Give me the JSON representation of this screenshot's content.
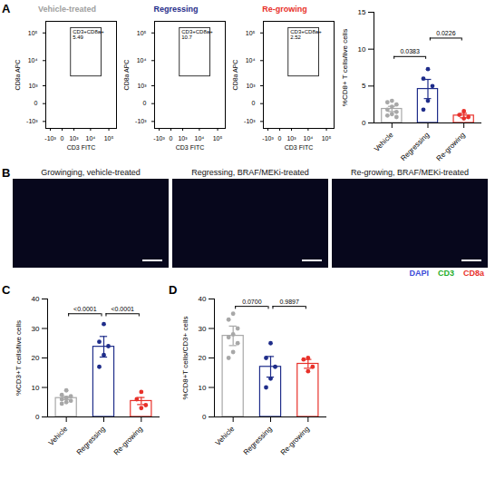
{
  "chart_data": [
    {
      "type": "flow",
      "panel": "A",
      "title": "Vehicle-treated",
      "color": "#a0a0a0",
      "xlabel": "CD3 FITC",
      "ylabel": "CD8a APC",
      "log": true,
      "xlim": [
        -2000,
        260000
      ],
      "ylim": [
        -2000,
        260000
      ],
      "xticks": [
        {
          "value": -1000,
          "label": "-10³"
        },
        0,
        {
          "value": 1000,
          "label": "10³"
        },
        {
          "value": 10000,
          "label": "10⁴"
        },
        {
          "value": 100000,
          "label": "10⁵"
        }
      ],
      "yticks": [
        {
          "value": -1000,
          "label": "-10³"
        },
        0,
        {
          "value": 1000,
          "label": "10³"
        },
        {
          "value": 10000,
          "label": "10⁴"
        },
        {
          "value": 100000,
          "label": "10⁵"
        }
      ],
      "gate": {
        "x": [
          600,
          40000
        ],
        "y": [
          2500,
          150000
        ],
        "label": "CD3+CD8a+",
        "value": 5.49
      }
    },
    {
      "type": "flow",
      "title": "Regressing",
      "color": "#1f2d8a",
      "xlabel": "CD3 FITC",
      "ylabel": "CD8a APC",
      "log": true,
      "xlim": [
        -2000,
        260000
      ],
      "ylim": [
        -2000,
        260000
      ],
      "xticks": [
        {
          "value": -1000,
          "label": "-10³"
        },
        0,
        {
          "value": 1000,
          "label": "10³"
        },
        {
          "value": 10000,
          "label": "10⁴"
        },
        {
          "value": 100000,
          "label": "10⁵"
        }
      ],
      "yticks": [
        {
          "value": -1000,
          "label": "-10³"
        },
        0,
        {
          "value": 1000,
          "label": "10³"
        },
        {
          "value": 10000,
          "label": "10⁴"
        },
        {
          "value": 100000,
          "label": "10⁵"
        }
      ],
      "gate": {
        "x": [
          600,
          40000
        ],
        "y": [
          2500,
          150000
        ],
        "label": "CD3+CD8a+",
        "value": 10.7
      }
    },
    {
      "type": "flow",
      "title": "Re-growing",
      "color": "#e8312a",
      "xlabel": "CD3 FITC",
      "ylabel": "CD8a APC",
      "log": true,
      "xlim": [
        -2000,
        260000
      ],
      "ylim": [
        -2000,
        260000
      ],
      "xticks": [
        {
          "value": -1000,
          "label": "-10³"
        },
        0,
        {
          "value": 1000,
          "label": "10³"
        },
        {
          "value": 10000,
          "label": "10⁴"
        },
        {
          "value": 100000,
          "label": "10⁵"
        }
      ],
      "yticks": [
        {
          "value": -1000,
          "label": "-10³"
        },
        0,
        {
          "value": 1000,
          "label": "10³"
        },
        {
          "value": 10000,
          "label": "10⁴"
        },
        {
          "value": 100000,
          "label": "10⁵"
        }
      ],
      "gate": {
        "x": [
          600,
          40000
        ],
        "y": [
          2500,
          150000
        ],
        "label": "CD3+CD8a+",
        "value": 2.52
      }
    },
    {
      "type": "bar",
      "ylabel": "%CD8+ T cells/live cells",
      "categories": [
        "Vehicle",
        "Regressing",
        "Re-growing"
      ],
      "values": [
        1.9,
        4.6,
        1.0
      ],
      "errors": [
        0.35,
        1.3,
        0.3
      ],
      "points": [
        [
          3.0,
          2.8,
          2.5,
          2.2,
          1.8,
          1.5,
          1.2,
          1.0,
          0.8
        ],
        [
          7.3,
          6.0,
          5.0,
          3.0,
          1.8
        ],
        [
          1.6,
          1.1,
          0.8,
          0.6
        ]
      ],
      "colors": [
        "#a8a8a8",
        "#1f2d8a",
        "#e8312a"
      ],
      "ylim": [
        0,
        15
      ],
      "yticks": [
        0,
        5,
        10,
        15
      ],
      "comparisons": [
        {
          "from": "Vehicle",
          "to": "Regressing",
          "y": 9,
          "label": "0.0383"
        },
        {
          "from": "Regressing",
          "to": "Re-growing",
          "y": 11.5,
          "label": "0.0226"
        }
      ]
    },
    {
      "type": "image",
      "panel": "B",
      "titles": [
        "Growinging, vehicle-treated",
        "Regressing, BRAF/MEKi-treated",
        "Re-growing, BRAF/MEKi-treated"
      ],
      "series": [
        {
          "name": "DAPI",
          "color": "#3b4bd8"
        },
        {
          "name": "CD3",
          "color": "#1fae2a"
        },
        {
          "name": "CD8a",
          "color": "#e8312a"
        }
      ],
      "legend": "bottom-right"
    },
    {
      "type": "bar",
      "panel": "C",
      "ylabel": "%CD3+T cells/live cells",
      "categories": [
        "Vehicle",
        "Regressing",
        "Re-growing"
      ],
      "values": [
        6.4,
        23.8,
        5.4
      ],
      "errors": [
        0.5,
        3.5,
        1.2
      ],
      "points": [
        [
          9.0,
          7.5,
          7.0,
          6.5,
          6.0,
          5.5,
          5.0,
          4.5
        ],
        [
          31.5,
          25.5,
          24.0,
          21.0,
          17.0
        ],
        [
          8.5,
          6.0,
          4.0,
          3.0
        ]
      ],
      "colors": [
        "#a8a8a8",
        "#1f2d8a",
        "#e8312a"
      ],
      "ylim": [
        0,
        40
      ],
      "yticks": [
        0,
        10,
        20,
        30,
        40
      ],
      "comparisons": [
        {
          "from": "Vehicle",
          "to": "Regressing",
          "y": 35,
          "label": "<0.0001"
        },
        {
          "from": "Regressing",
          "to": "Re-growing",
          "y": 35,
          "label": "<0.0001"
        }
      ]
    },
    {
      "type": "bar",
      "panel": "D",
      "ylabel": "%CD8+T cells/CD3+ cells",
      "categories": [
        "Vehicle",
        "Regressing",
        "Re-growing"
      ],
      "values": [
        27.5,
        17.0,
        18.0
      ],
      "errors": [
        3.3,
        3.5,
        1.5
      ],
      "points": [
        [
          35,
          33,
          30,
          28,
          27,
          25,
          22,
          20
        ],
        [
          25,
          20,
          17,
          13,
          10
        ],
        [
          20,
          19.5,
          17,
          15.5
        ]
      ],
      "colors": [
        "#a8a8a8",
        "#1f2d8a",
        "#e8312a"
      ],
      "ylim": [
        0,
        40
      ],
      "yticks": [
        0,
        10,
        20,
        30,
        40
      ],
      "comparisons": [
        {
          "from": "Vehicle",
          "to": "Regressing",
          "y": 37.5,
          "label": "0.0700"
        },
        {
          "from": "Regressing",
          "to": "Re-growing",
          "y": 37.5,
          "label": "0.9897"
        }
      ]
    }
  ]
}
